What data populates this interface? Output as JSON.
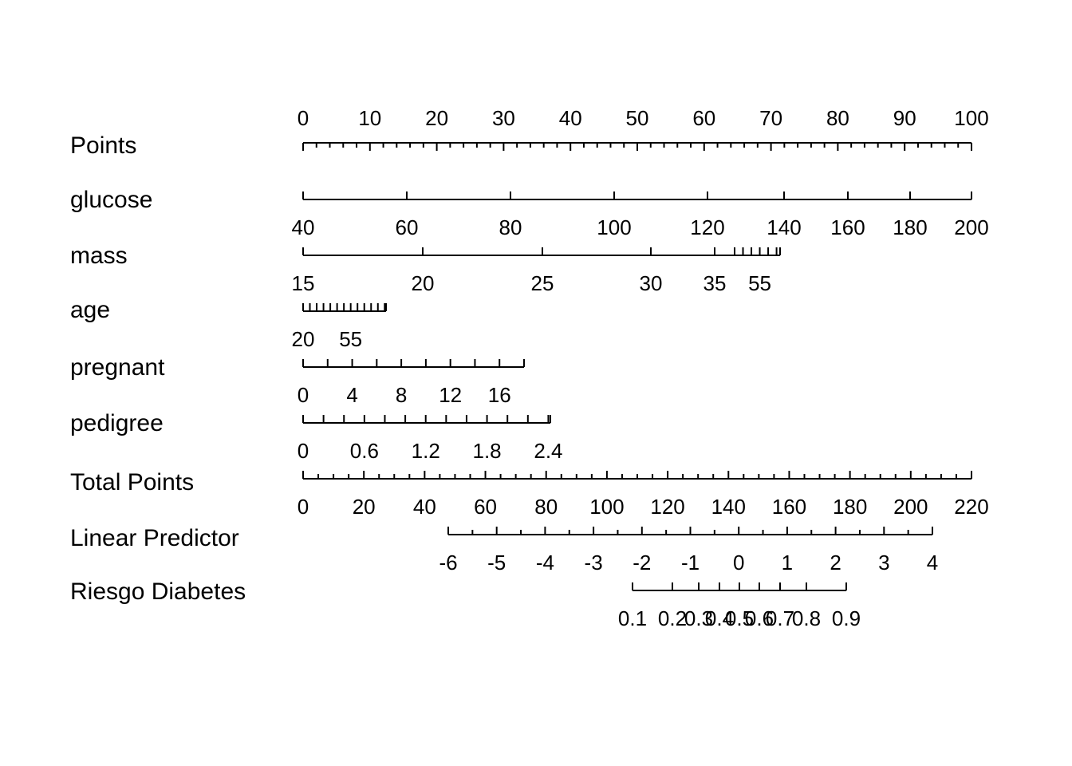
{
  "chart_data": {
    "type": "nomogram",
    "rows": [
      {
        "id": "points",
        "label": "Points",
        "labels_above": true,
        "major": [
          {
            "v": 0,
            "t": "0"
          },
          {
            "v": 10,
            "t": "10"
          },
          {
            "v": 20,
            "t": "20"
          },
          {
            "v": 30,
            "t": "30"
          },
          {
            "v": 40,
            "t": "40"
          },
          {
            "v": 50,
            "t": "50"
          },
          {
            "v": 60,
            "t": "60"
          },
          {
            "v": 70,
            "t": "70"
          },
          {
            "v": 80,
            "t": "80"
          },
          {
            "v": 90,
            "t": "90"
          },
          {
            "v": 100,
            "t": "100"
          }
        ],
        "minor_step": 2
      },
      {
        "id": "glucose",
        "label": "glucose",
        "major": [
          {
            "v": 40,
            "t": "40"
          },
          {
            "v": 60,
            "t": "60"
          },
          {
            "v": 80,
            "t": "80"
          },
          {
            "v": 100,
            "t": "100"
          },
          {
            "v": 120,
            "t": "120"
          },
          {
            "v": 140,
            "t": "140"
          },
          {
            "v": 160,
            "t": "160"
          },
          {
            "v": 180,
            "t": "180"
          },
          {
            "v": 200,
            "t": "200"
          }
        ]
      },
      {
        "id": "mass",
        "label": "mass",
        "major": [
          {
            "v": 15,
            "t": "15"
          },
          {
            "v": 20,
            "t": "20"
          },
          {
            "v": 25,
            "t": "25"
          },
          {
            "v": 30,
            "t": "30"
          },
          {
            "v": 35,
            "t": "35"
          },
          {
            "v": 40,
            "t": ""
          },
          {
            "v": 45,
            "t": ""
          },
          {
            "v": 50,
            "t": ""
          },
          {
            "v": 55,
            "t": "55"
          },
          {
            "v": 60,
            "t": ""
          },
          {
            "v": 65,
            "t": ""
          },
          {
            "v": 67.1,
            "t": ""
          }
        ]
      },
      {
        "id": "age",
        "label": "age",
        "major": [
          {
            "v": 20,
            "t": "20"
          },
          {
            "v": 25,
            "t": ""
          },
          {
            "v": 30,
            "t": ""
          },
          {
            "v": 35,
            "t": ""
          },
          {
            "v": 40,
            "t": ""
          },
          {
            "v": 45,
            "t": ""
          },
          {
            "v": 50,
            "t": ""
          },
          {
            "v": 55,
            "t": "55"
          },
          {
            "v": 60,
            "t": ""
          },
          {
            "v": 65,
            "t": ""
          },
          {
            "v": 70,
            "t": ""
          },
          {
            "v": 75,
            "t": ""
          },
          {
            "v": 80,
            "t": ""
          },
          {
            "v": 81,
            "t": ""
          }
        ]
      },
      {
        "id": "pregnant",
        "label": "pregnant",
        "major": [
          {
            "v": 0,
            "t": "0"
          },
          {
            "v": 2,
            "t": ""
          },
          {
            "v": 4,
            "t": "4"
          },
          {
            "v": 6,
            "t": ""
          },
          {
            "v": 8,
            "t": "8"
          },
          {
            "v": 10,
            "t": ""
          },
          {
            "v": 12,
            "t": "12"
          },
          {
            "v": 14,
            "t": ""
          },
          {
            "v": 16,
            "t": "16"
          },
          {
            "v": 18,
            "t": ""
          }
        ]
      },
      {
        "id": "pedigree",
        "label": "pedigree",
        "major": [
          {
            "v": 0,
            "t": "0"
          },
          {
            "v": 0.2,
            "t": ""
          },
          {
            "v": 0.4,
            "t": ""
          },
          {
            "v": 0.6,
            "t": "0.6"
          },
          {
            "v": 0.8,
            "t": ""
          },
          {
            "v": 1.0,
            "t": ""
          },
          {
            "v": 1.2,
            "t": "1.2"
          },
          {
            "v": 1.4,
            "t": ""
          },
          {
            "v": 1.6,
            "t": ""
          },
          {
            "v": 1.8,
            "t": "1.8"
          },
          {
            "v": 2.0,
            "t": ""
          },
          {
            "v": 2.2,
            "t": ""
          },
          {
            "v": 2.4,
            "t": "2.4"
          },
          {
            "v": 2.42,
            "t": ""
          }
        ]
      },
      {
        "id": "total_points",
        "label": "Total Points",
        "major": [
          {
            "v": 0,
            "t": "0"
          },
          {
            "v": 20,
            "t": "20"
          },
          {
            "v": 40,
            "t": "40"
          },
          {
            "v": 60,
            "t": "60"
          },
          {
            "v": 80,
            "t": "80"
          },
          {
            "v": 100,
            "t": "100"
          },
          {
            "v": 120,
            "t": "120"
          },
          {
            "v": 140,
            "t": "140"
          },
          {
            "v": 160,
            "t": "160"
          },
          {
            "v": 180,
            "t": "180"
          },
          {
            "v": 200,
            "t": "200"
          },
          {
            "v": 220,
            "t": "220"
          }
        ],
        "minor_step": 5
      },
      {
        "id": "linear_predictor",
        "label": "Linear Predictor",
        "major": [
          {
            "v": -6,
            "t": "-6"
          },
          {
            "v": -5,
            "t": "-5"
          },
          {
            "v": -4,
            "t": "-4"
          },
          {
            "v": -3,
            "t": "-3"
          },
          {
            "v": -2,
            "t": "-2"
          },
          {
            "v": -1,
            "t": "-1"
          },
          {
            "v": 0,
            "t": "0"
          },
          {
            "v": 1,
            "t": "1"
          },
          {
            "v": 2,
            "t": "2"
          },
          {
            "v": 3,
            "t": "3"
          },
          {
            "v": 4,
            "t": "4"
          }
        ],
        "minor_step": 0.5
      },
      {
        "id": "riesgo_diabetes",
        "label": "Riesgo Diabetes",
        "major": [
          {
            "v": 0.1,
            "t": "0.1"
          },
          {
            "v": 0.2,
            "t": "0.2"
          },
          {
            "v": 0.3,
            "t": "0.3"
          },
          {
            "v": 0.4,
            "t": "0.4"
          },
          {
            "v": 0.5,
            "t": "0.5"
          },
          {
            "v": 0.6,
            "t": "0.6"
          },
          {
            "v": 0.7,
            "t": "0.7"
          },
          {
            "v": 0.8,
            "t": "0.8"
          },
          {
            "v": 0.9,
            "t": "0.9"
          }
        ]
      }
    ]
  }
}
